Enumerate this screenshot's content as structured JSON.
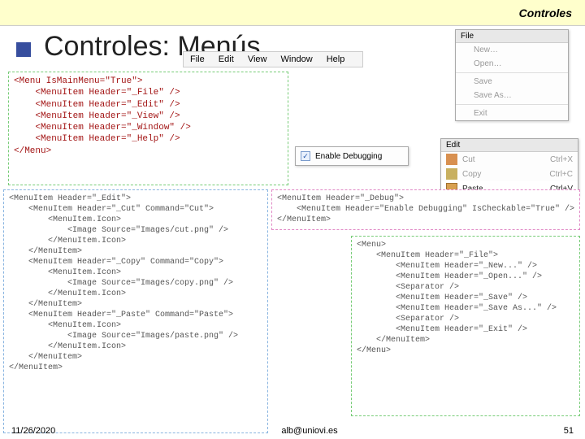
{
  "header": {
    "breadcrumb": "Controles"
  },
  "title": "Controles: Menús",
  "menubar": {
    "items": [
      "File",
      "Edit",
      "View",
      "Window",
      "Help"
    ]
  },
  "fileMenu": {
    "header": "File",
    "items": [
      "New…",
      "Open…",
      "Save",
      "Save As…",
      "Exit"
    ]
  },
  "editMenu": {
    "header": "Edit",
    "rows": [
      {
        "label": "Cut",
        "shortcut": "Ctrl+X",
        "icon": "cut"
      },
      {
        "label": "Copy",
        "shortcut": "Ctrl+C",
        "icon": "copy"
      },
      {
        "label": "Paste",
        "shortcut": "Ctrl+V",
        "icon": "paste",
        "selected": true
      }
    ]
  },
  "debugMenu": {
    "label": "Enable Debugging",
    "checked": true
  },
  "code1": "<Menu IsMainMenu=\"True\">\n    <MenuItem Header=\"_File\" />\n    <MenuItem Header=\"_Edit\" />\n    <MenuItem Header=\"_View\" />\n    <MenuItem Header=\"_Window\" />\n    <MenuItem Header=\"_Help\" />\n</Menu>",
  "code2": "<MenuItem Header=\"_Edit\">\n    <MenuItem Header=\"_Cut\" Command=\"Cut\">\n        <MenuItem.Icon>\n            <Image Source=\"Images/cut.png\" />\n        </MenuItem.Icon>\n    </MenuItem>\n    <MenuItem Header=\"_Copy\" Command=\"Copy\">\n        <MenuItem.Icon>\n            <Image Source=\"Images/copy.png\" />\n        </MenuItem.Icon>\n    </MenuItem>\n    <MenuItem Header=\"_Paste\" Command=\"Paste\">\n        <MenuItem.Icon>\n            <Image Source=\"Images/paste.png\" />\n        </MenuItem.Icon>\n    </MenuItem>\n</MenuItem>",
  "code3": "<MenuItem Header=\"_Debug\">\n    <MenuItem Header=\"Enable Debugging\" IsCheckable=\"True\" />\n</MenuItem>",
  "code4": "<Menu>\n    <MenuItem Header=\"_File\">\n        <MenuItem Header=\"_New...\" />\n        <MenuItem Header=\"_Open...\" />\n        <Separator />\n        <MenuItem Header=\"_Save\" />\n        <MenuItem Header=\"_Save As...\" />\n        <Separator />\n        <MenuItem Header=\"_Exit\" />\n    </MenuItem>\n</Menu>",
  "footer": {
    "date": "11/26/2020",
    "email": "alb@uniovi.es",
    "page": "51"
  }
}
